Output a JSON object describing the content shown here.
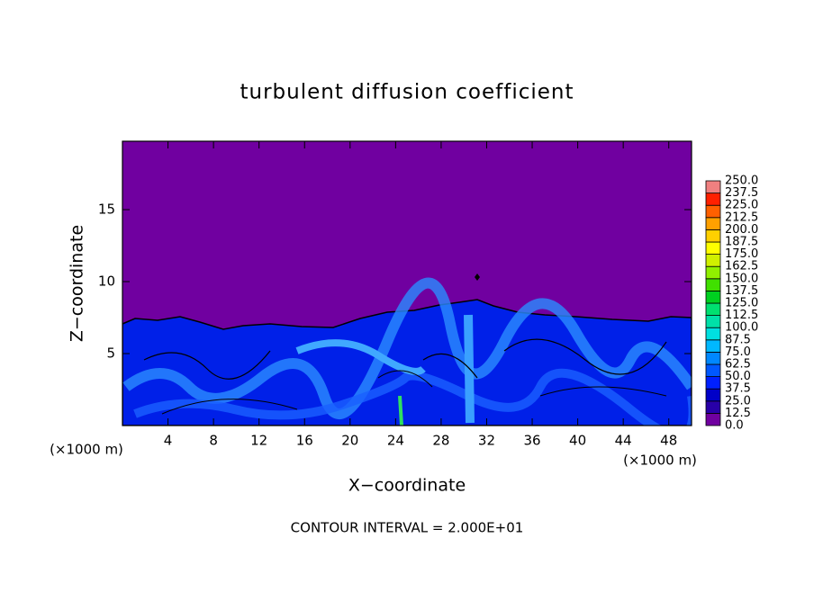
{
  "chart_data": {
    "type": "contour",
    "title": "turbulent diffusion coefficient",
    "x_label": "X−coordinate",
    "y_label": "Z−coordinate",
    "x_unit_labels": [
      "(×1000 m)",
      "(×1000 m)"
    ],
    "footer": "CONTOUR INTERVAL = 2.000E+01",
    "xlim": [
      0,
      50
    ],
    "xticks": [
      4,
      8,
      12,
      16,
      20,
      24,
      28,
      32,
      36,
      40,
      44,
      48
    ],
    "ylim": [
      0,
      19.75
    ],
    "yticks": [
      5,
      10,
      15
    ],
    "colorbar": {
      "levels": [
        {
          "value": 0,
          "label": "0.0"
        },
        {
          "value": 12.5,
          "label": "12.5"
        },
        {
          "value": 25,
          "label": "25.0"
        },
        {
          "value": 37.5,
          "label": "37.5"
        },
        {
          "value": 50,
          "label": "50.0"
        },
        {
          "value": 62.5,
          "label": "62.5"
        },
        {
          "value": 75,
          "label": "75.0"
        },
        {
          "value": 87.5,
          "label": "87.5"
        },
        {
          "value": 100,
          "label": "100.0"
        },
        {
          "value": 112.5,
          "label": "112.5"
        },
        {
          "value": 125,
          "label": "125.0"
        },
        {
          "value": 137.5,
          "label": "137.5"
        },
        {
          "value": 150,
          "label": "150.0"
        },
        {
          "value": 162.5,
          "label": "162.5"
        },
        {
          "value": 175,
          "label": "175.0"
        },
        {
          "value": 187.5,
          "label": "187.5"
        },
        {
          "value": 200,
          "label": "200.0"
        },
        {
          "value": 212.5,
          "label": "212.5"
        },
        {
          "value": 225,
          "label": "225.0"
        },
        {
          "value": 237.5,
          "label": "237.5"
        },
        {
          "value": 250,
          "label": "250.0"
        }
      ],
      "colors": [
        "#7000a0",
        "#2800a8",
        "#0000c8",
        "#0020ff",
        "#0058ff",
        "#0088ff",
        "#00b8ff",
        "#00e0e0",
        "#00e0a8",
        "#00e070",
        "#00d020",
        "#40e000",
        "#90f000",
        "#d0f000",
        "#ffff00",
        "#ffd000",
        "#ffa000",
        "#ff6000",
        "#ff2000",
        "#f08080"
      ]
    }
  }
}
